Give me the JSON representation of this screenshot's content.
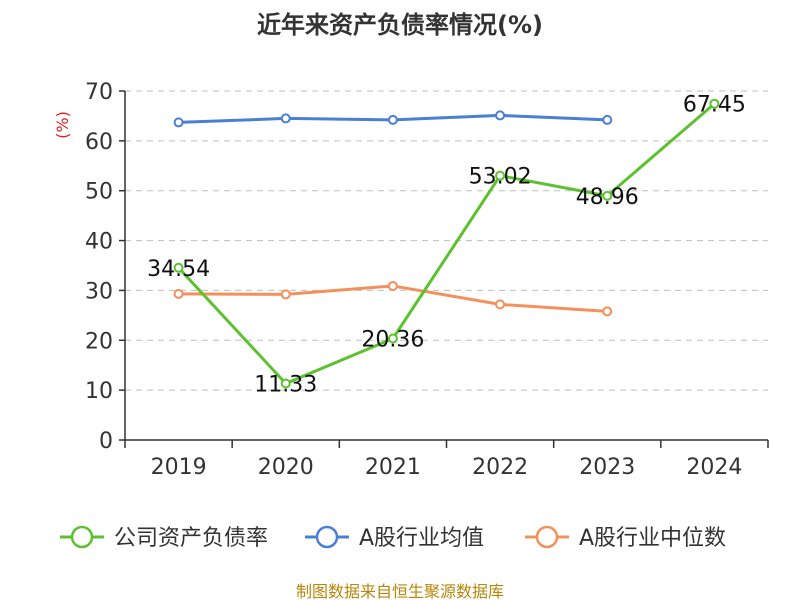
{
  "chart_data": {
    "type": "line",
    "title": "近年来资产负债率情况(%)",
    "ylabel": "(%)",
    "xlabel": "",
    "categories": [
      "2019",
      "2020",
      "2021",
      "2022",
      "2023",
      "2024"
    ],
    "ylim": [
      0,
      70
    ],
    "yticks": [
      0,
      10,
      20,
      30,
      40,
      50,
      60,
      70
    ],
    "grid": true,
    "legend_position": "bottom",
    "series": [
      {
        "name": "公司资产负债率",
        "color": "#5cc12f",
        "values": [
          34.54,
          11.33,
          20.36,
          53.02,
          48.96,
          67.45
        ],
        "labels": [
          "34.54",
          "11.33",
          "20.36",
          "53.02",
          "48.96",
          "67.45"
        ]
      },
      {
        "name": "A股行业均值",
        "color": "#4a7fd6",
        "values": [
          63.7,
          64.5,
          64.2,
          65.1,
          64.2,
          null
        ]
      },
      {
        "name": "A股行业中位数",
        "color": "#f4905a",
        "values": [
          29.3,
          29.2,
          30.9,
          27.2,
          25.8,
          null
        ]
      }
    ]
  },
  "footer": {
    "source": "制图数据来自恒生聚源数据库"
  }
}
